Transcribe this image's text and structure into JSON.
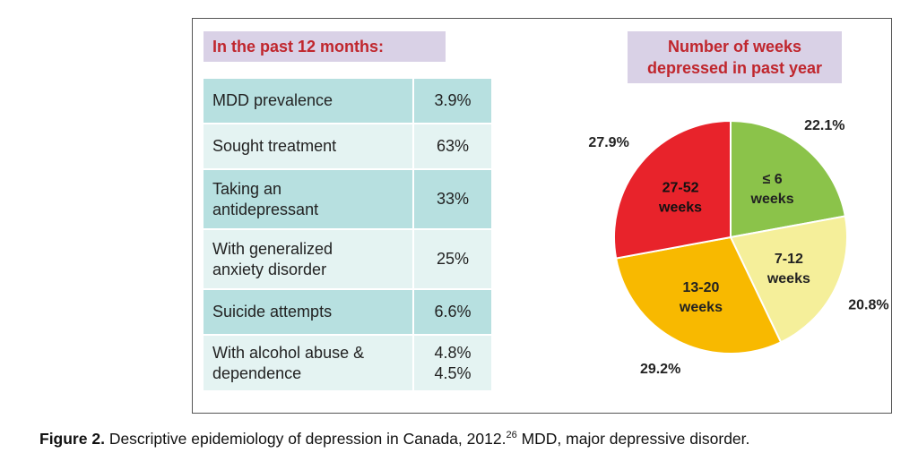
{
  "colors": {
    "title_text": "#c0262d",
    "title_bg": "#d9d1e6",
    "row_dark": "#b7e0e0",
    "row_light": "#e4f3f2",
    "pie_slices": [
      "#8bc34a",
      "#f5ef9a",
      "#f8b900",
      "#e8232b"
    ],
    "pie_edge": "#ffffff"
  },
  "table": {
    "title": "In the past 12 months:",
    "rows": [
      {
        "label": [
          "MDD prevalence"
        ],
        "value": [
          "3.9%"
        ]
      },
      {
        "label": [
          "Sought treatment"
        ],
        "value": [
          "63%"
        ]
      },
      {
        "label": [
          "Taking an",
          "antidepressant"
        ],
        "value": [
          "33%"
        ]
      },
      {
        "label": [
          "With generalized",
          "anxiety disorder"
        ],
        "value": [
          "25%"
        ]
      },
      {
        "label": [
          "Suicide attempts"
        ],
        "value": [
          "6.6%"
        ]
      },
      {
        "label": [
          "With alcohol abuse &",
          "dependence"
        ],
        "value": [
          "4.8%",
          "4.5%"
        ]
      }
    ]
  },
  "chart_data": {
    "type": "pie",
    "title": [
      "Number of weeks",
      "depressed in past year"
    ],
    "categories": [
      "≤ 6 weeks",
      "7-12 weeks",
      "13-20 weeks",
      "27-52 weeks"
    ],
    "inner_labels": [
      [
        "≤ 6",
        "weeks"
      ],
      [
        "7-12",
        "weeks"
      ],
      [
        "13-20",
        "weeks"
      ],
      [
        "27-52",
        "weeks"
      ]
    ],
    "values": [
      22.1,
      20.8,
      29.2,
      27.9
    ],
    "value_labels": [
      "22.1%",
      "20.8%",
      "29.2%",
      "27.9%"
    ],
    "start_angle_deg": 0,
    "direction": "clockwise"
  },
  "caption": {
    "figure_label": "Figure 2.",
    "text": "Descriptive epidemiology of depression in Canada, 2012.",
    "ref": "26",
    "text_after": "MDD, major depressive disorder."
  }
}
